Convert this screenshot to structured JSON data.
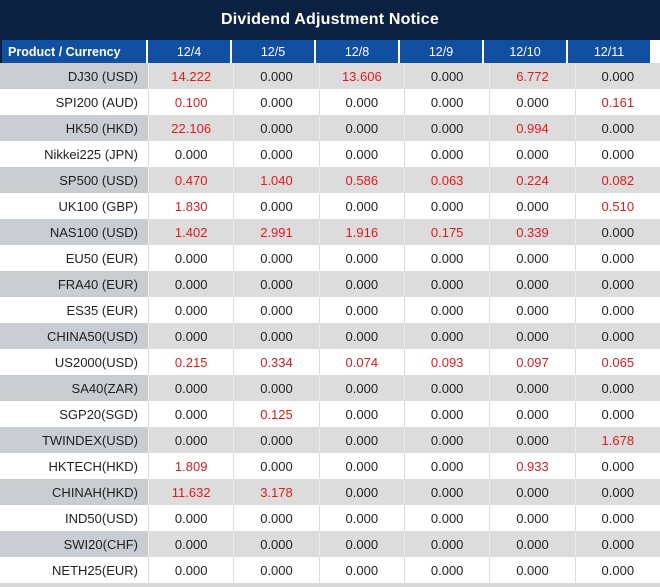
{
  "title": "Dividend Adjustment Notice",
  "colors": {
    "title_bar": "#0b2142",
    "header_bar": "#1150a0",
    "alt_row": "#dcdcdc",
    "alt_row_product": "#c9ccd1",
    "highlight_value": "#e21a1d"
  },
  "table": {
    "columns": [
      "Product / Currency",
      "12/4",
      "12/5",
      "12/8",
      "12/9",
      "12/10",
      "12/11"
    ],
    "rows": [
      {
        "product": "DJ30 (USD)",
        "values": [
          "14.222",
          "0.000",
          "13.606",
          "0.000",
          "6.772",
          "0.000"
        ],
        "red": [
          0,
          2,
          4
        ]
      },
      {
        "product": "SPI200 (AUD)",
        "values": [
          "0.100",
          "0.000",
          "0.000",
          "0.000",
          "0.000",
          "0.161"
        ],
        "red": [
          0,
          5
        ]
      },
      {
        "product": "HK50 (HKD)",
        "values": [
          "22.106",
          "0.000",
          "0.000",
          "0.000",
          "0.994",
          "0.000"
        ],
        "red": [
          0,
          4
        ]
      },
      {
        "product": "Nikkei225 (JPN)",
        "values": [
          "0.000",
          "0.000",
          "0.000",
          "0.000",
          "0.000",
          "0.000"
        ],
        "red": []
      },
      {
        "product": "SP500 (USD)",
        "values": [
          "0.470",
          "1.040",
          "0.586",
          "0.063",
          "0.224",
          "0.082"
        ],
        "red": [
          0,
          1,
          2,
          3,
          4,
          5
        ]
      },
      {
        "product": "UK100 (GBP)",
        "values": [
          "1.830",
          "0.000",
          "0.000",
          "0.000",
          "0.000",
          "0.510"
        ],
        "red": [
          0,
          5
        ]
      },
      {
        "product": "NAS100 (USD)",
        "values": [
          "1.402",
          "2.991",
          "1.916",
          "0.175",
          "0.339",
          "0.000"
        ],
        "red": [
          0,
          1,
          2,
          3,
          4
        ]
      },
      {
        "product": "EU50 (EUR)",
        "values": [
          "0.000",
          "0.000",
          "0.000",
          "0.000",
          "0.000",
          "0.000"
        ],
        "red": []
      },
      {
        "product": "FRA40 (EUR)",
        "values": [
          "0.000",
          "0.000",
          "0.000",
          "0.000",
          "0.000",
          "0.000"
        ],
        "red": []
      },
      {
        "product": "ES35 (EUR)",
        "values": [
          "0.000",
          "0.000",
          "0.000",
          "0.000",
          "0.000",
          "0.000"
        ],
        "red": []
      },
      {
        "product": "CHINA50(USD)",
        "values": [
          "0.000",
          "0.000",
          "0.000",
          "0.000",
          "0.000",
          "0.000"
        ],
        "red": []
      },
      {
        "product": "US2000(USD)",
        "values": [
          "0.215",
          "0.334",
          "0.074",
          "0.093",
          "0.097",
          "0.065"
        ],
        "red": [
          0,
          1,
          2,
          3,
          4,
          5
        ]
      },
      {
        "product": "SA40(ZAR)",
        "values": [
          "0.000",
          "0.000",
          "0.000",
          "0.000",
          "0.000",
          "0.000"
        ],
        "red": []
      },
      {
        "product": "SGP20(SGD)",
        "values": [
          "0.000",
          "0.125",
          "0.000",
          "0.000",
          "0.000",
          "0.000"
        ],
        "red": [
          1
        ]
      },
      {
        "product": "TWINDEX(USD)",
        "values": [
          "0.000",
          "0.000",
          "0.000",
          "0.000",
          "0.000",
          "1.678"
        ],
        "red": [
          5
        ]
      },
      {
        "product": "HKTECH(HKD)",
        "values": [
          "1.809",
          "0.000",
          "0.000",
          "0.000",
          "0.933",
          "0.000"
        ],
        "red": [
          0,
          4
        ]
      },
      {
        "product": "CHINAH(HKD)",
        "values": [
          "11.632",
          "3.178",
          "0.000",
          "0.000",
          "0.000",
          "0.000"
        ],
        "red": [
          0,
          1
        ]
      },
      {
        "product": "IND50(USD)",
        "values": [
          "0.000",
          "0.000",
          "0.000",
          "0.000",
          "0.000",
          "0.000"
        ],
        "red": []
      },
      {
        "product": "SWI20(CHF)",
        "values": [
          "0.000",
          "0.000",
          "0.000",
          "0.000",
          "0.000",
          "0.000"
        ],
        "red": []
      },
      {
        "product": "NETH25(EUR)",
        "values": [
          "0.000",
          "0.000",
          "0.000",
          "0.000",
          "0.000",
          "0.000"
        ],
        "red": []
      }
    ]
  }
}
